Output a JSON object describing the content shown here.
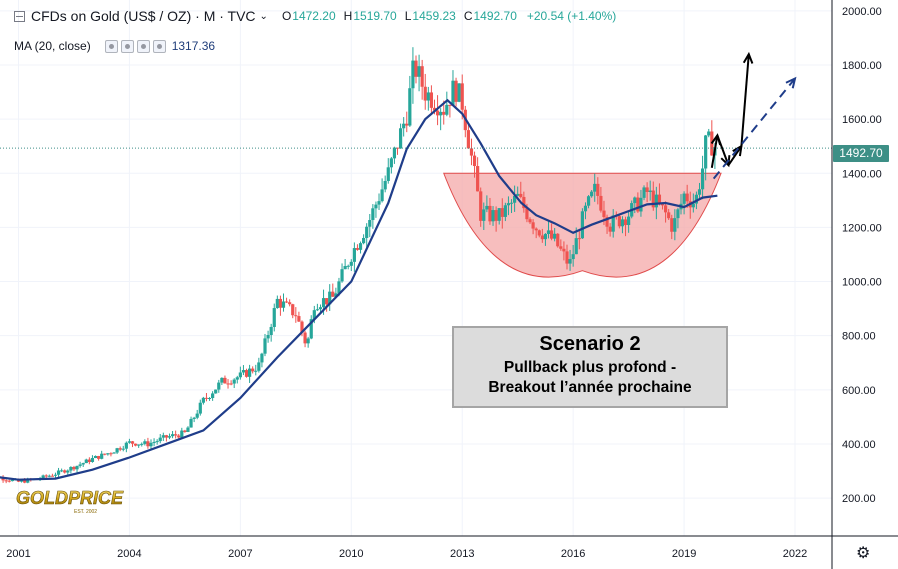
{
  "header": {
    "symbol": "CFDs on Gold (US$ / OZ) · M · TVC",
    "open_label": "O",
    "open_value": "1472.20",
    "high_label": "H",
    "high_value": "1519.70",
    "low_label": "L",
    "low_value": "1459.23",
    "close_label": "C",
    "close_value": "1492.70",
    "change": "+20.54 (+1.40%)"
  },
  "indicator": {
    "label": "MA (20, close)",
    "value": "1317.36"
  },
  "price_tag": "1492.70",
  "annotation": {
    "title": "Scenario 2",
    "line1": "Pullback plus profond -",
    "line2": "Breakout l’année prochaine"
  },
  "logo": {
    "text": "GOLDPRICE",
    "sub": "EST. 2002"
  },
  "colors": {
    "up": "#26a69a",
    "down": "#ef5350",
    "ma": "#1f3d8a",
    "cup": "#f4a8a8",
    "pricetag": "#3d8f86"
  },
  "icons": {
    "settings": "gear-icon",
    "collapse": "collapse-icon"
  },
  "chart_data": {
    "type": "candlestick",
    "interval": "monthly",
    "x_ticks": [
      "2001",
      "2004",
      "2007",
      "2010",
      "2013",
      "2016",
      "2019",
      "2022"
    ],
    "y_ticks": [
      "200.00",
      "400.00",
      "600.00",
      "800.00",
      "1000.00",
      "1200.00",
      "1400.00",
      "1600.00",
      "1800.00",
      "2000.00"
    ],
    "xlim": [
      2000.5,
      2023.0
    ],
    "ylim": [
      60,
      2040
    ],
    "last_price": 1492.7,
    "series": [
      {
        "name": "MA (20, close)",
        "points": [
          [
            2000.0,
            285
          ],
          [
            2001.0,
            268
          ],
          [
            2002.0,
            272
          ],
          [
            2003.0,
            305
          ],
          [
            2004.0,
            350
          ],
          [
            2005.0,
            400
          ],
          [
            2006.0,
            450
          ],
          [
            2007.0,
            570
          ],
          [
            2008.0,
            720
          ],
          [
            2009.0,
            860
          ],
          [
            2010.0,
            1000
          ],
          [
            2011.0,
            1290
          ],
          [
            2011.5,
            1490
          ],
          [
            2012.0,
            1600
          ],
          [
            2012.6,
            1670
          ],
          [
            2013.0,
            1620
          ],
          [
            2013.5,
            1510
          ],
          [
            2014.0,
            1390
          ],
          [
            2014.6,
            1290
          ],
          [
            2015.0,
            1245
          ],
          [
            2015.5,
            1215
          ],
          [
            2016.0,
            1180
          ],
          [
            2016.5,
            1210
          ],
          [
            2017.0,
            1235
          ],
          [
            2017.5,
            1260
          ],
          [
            2018.0,
            1285
          ],
          [
            2018.5,
            1290
          ],
          [
            2019.0,
            1275
          ],
          [
            2019.5,
            1310
          ],
          [
            2019.9,
            1317
          ]
        ]
      },
      {
        "name": "Gold close",
        "points": [
          [
            2000.0,
            290
          ],
          [
            2000.5,
            275
          ],
          [
            2001.0,
            260
          ],
          [
            2001.5,
            270
          ],
          [
            2002.0,
            290
          ],
          [
            2002.5,
            315
          ],
          [
            2003.0,
            345
          ],
          [
            2003.5,
            370
          ],
          [
            2004.0,
            405
          ],
          [
            2004.5,
            400
          ],
          [
            2005.0,
            425
          ],
          [
            2005.5,
            440
          ],
          [
            2006.0,
            560
          ],
          [
            2006.5,
            630
          ],
          [
            2007.0,
            650
          ],
          [
            2007.5,
            690
          ],
          [
            2008.0,
            930
          ],
          [
            2008.5,
            880
          ],
          [
            2008.8,
            760
          ],
          [
            2009.0,
            920
          ],
          [
            2009.5,
            940
          ],
          [
            2010.0,
            1100
          ],
          [
            2010.5,
            1230
          ],
          [
            2011.0,
            1400
          ],
          [
            2011.5,
            1620
          ],
          [
            2011.7,
            1800
          ],
          [
            2012.0,
            1700
          ],
          [
            2012.5,
            1640
          ],
          [
            2012.8,
            1720
          ],
          [
            2013.0,
            1660
          ],
          [
            2013.3,
            1420
          ],
          [
            2013.5,
            1250
          ],
          [
            2014.0,
            1240
          ],
          [
            2014.5,
            1310
          ],
          [
            2015.0,
            1200
          ],
          [
            2015.5,
            1150
          ],
          [
            2015.9,
            1060
          ],
          [
            2016.3,
            1250
          ],
          [
            2016.6,
            1340
          ],
          [
            2017.0,
            1210
          ],
          [
            2017.5,
            1250
          ],
          [
            2018.0,
            1330
          ],
          [
            2018.5,
            1250
          ],
          [
            2018.7,
            1200
          ],
          [
            2019.0,
            1320
          ],
          [
            2019.3,
            1290
          ],
          [
            2019.5,
            1420
          ],
          [
            2019.6,
            1520
          ],
          [
            2019.9,
            1493
          ]
        ]
      }
    ],
    "overlays": {
      "cup_rim_level": 1400,
      "cup_low_level": 1040,
      "cup_range": [
        2012.5,
        2020.0
      ],
      "scenario_arrows": [
        {
          "from": [
            2019.75,
            1420
          ],
          "to": [
            2019.9,
            1540
          ]
        },
        {
          "from": [
            2019.9,
            1540
          ],
          "to": [
            2020.2,
            1430
          ]
        },
        {
          "from": [
            2020.2,
            1430
          ],
          "to": [
            2020.55,
            1500
          ]
        },
        {
          "from": [
            2020.55,
            1500
          ],
          "to": [
            2020.75,
            1840
          ]
        }
      ],
      "projection": {
        "from": [
          2019.8,
          1380
        ],
        "to": [
          2022.0,
          1750
        ]
      }
    }
  }
}
